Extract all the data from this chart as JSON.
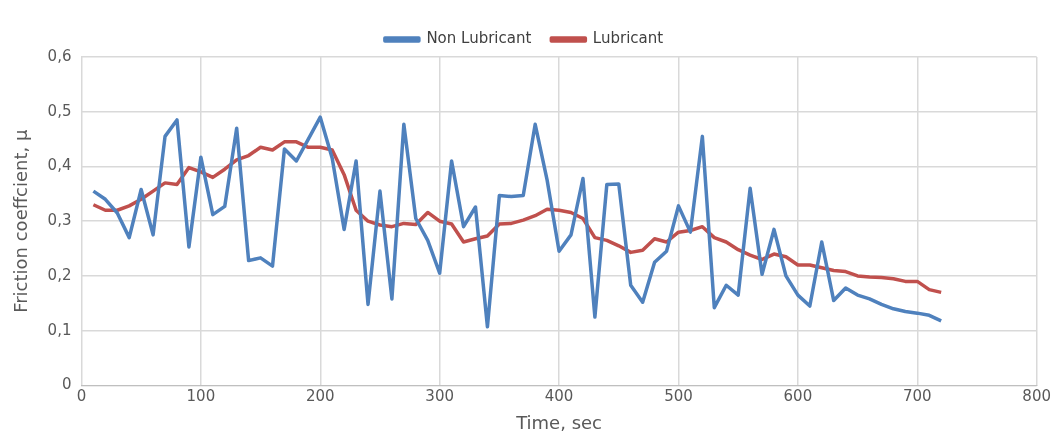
{
  "chart_data": {
    "type": "line",
    "xlabel": "Time, sec",
    "ylabel": "Friction coeffcient, μ",
    "x": [
      10,
      20,
      30,
      40,
      50,
      60,
      70,
      80,
      90,
      100,
      110,
      120,
      130,
      140,
      150,
      160,
      170,
      180,
      190,
      200,
      210,
      220,
      230,
      240,
      250,
      260,
      270,
      280,
      290,
      300,
      310,
      320,
      330,
      340,
      350,
      360,
      370,
      380,
      390,
      400,
      410,
      420,
      430,
      440,
      450,
      460,
      470,
      480,
      490,
      500,
      510,
      520,
      530,
      540,
      550,
      560,
      570,
      580,
      590,
      600,
      610,
      620,
      630,
      640,
      650,
      660,
      670,
      680,
      690,
      700,
      710,
      720
    ],
    "series": [
      {
        "name": "Non Lubricant",
        "color": "#4f81bd",
        "values": [
          0.355,
          0.34,
          0.315,
          0.27,
          0.358,
          0.275,
          0.455,
          0.485,
          0.253,
          0.417,
          0.312,
          0.327,
          0.47,
          0.228,
          0.233,
          0.218,
          0.432,
          0.41,
          0.45,
          0.49,
          0.415,
          0.285,
          0.41,
          0.148,
          0.355,
          0.158,
          0.477,
          0.305,
          0.265,
          0.205,
          0.41,
          0.29,
          0.326,
          0.107,
          0.347,
          0.345,
          0.347,
          0.477,
          0.375,
          0.245,
          0.275,
          0.378,
          0.125,
          0.367,
          0.368,
          0.183,
          0.152,
          0.225,
          0.245,
          0.328,
          0.28,
          0.455,
          0.142,
          0.183,
          0.165,
          0.36,
          0.203,
          0.285,
          0.2,
          0.165,
          0.145,
          0.262,
          0.155,
          0.178,
          0.165,
          0.158,
          0.148,
          0.14,
          0.135,
          0.132,
          0.128,
          0.118
        ]
      },
      {
        "name": "Lubricant",
        "color": "#c0504d",
        "values": [
          0.33,
          0.32,
          0.32,
          0.328,
          0.34,
          0.355,
          0.37,
          0.367,
          0.398,
          0.39,
          0.38,
          0.395,
          0.412,
          0.42,
          0.435,
          0.43,
          0.445,
          0.445,
          0.435,
          0.435,
          0.43,
          0.385,
          0.32,
          0.3,
          0.293,
          0.29,
          0.296,
          0.294,
          0.316,
          0.3,
          0.295,
          0.262,
          0.268,
          0.273,
          0.295,
          0.296,
          0.302,
          0.31,
          0.322,
          0.32,
          0.316,
          0.305,
          0.27,
          0.265,
          0.255,
          0.243,
          0.247,
          0.268,
          0.262,
          0.28,
          0.283,
          0.29,
          0.27,
          0.262,
          0.248,
          0.238,
          0.23,
          0.24,
          0.235,
          0.22,
          0.22,
          0.215,
          0.21,
          0.208,
          0.2,
          0.198,
          0.197,
          0.195,
          0.19,
          0.19,
          0.175,
          0.17
        ]
      }
    ],
    "xlim": [
      0,
      800
    ],
    "xticks": [
      0,
      100,
      200,
      300,
      400,
      500,
      600,
      700,
      800
    ],
    "ylim": [
      0,
      0.6
    ],
    "yticks": [
      0,
      {
        "value": 0.1,
        "label": "0,1"
      },
      {
        "value": 0.2,
        "label": "0,2"
      },
      {
        "value": 0.3,
        "label": "0,3"
      },
      {
        "value": 0.4,
        "label": "0,4"
      },
      {
        "value": 0.5,
        "label": "0,5"
      },
      {
        "value": 0.6,
        "label": "0,6"
      }
    ],
    "grid": true,
    "legend": "top",
    "marker": "none",
    "line_style": "solid"
  }
}
